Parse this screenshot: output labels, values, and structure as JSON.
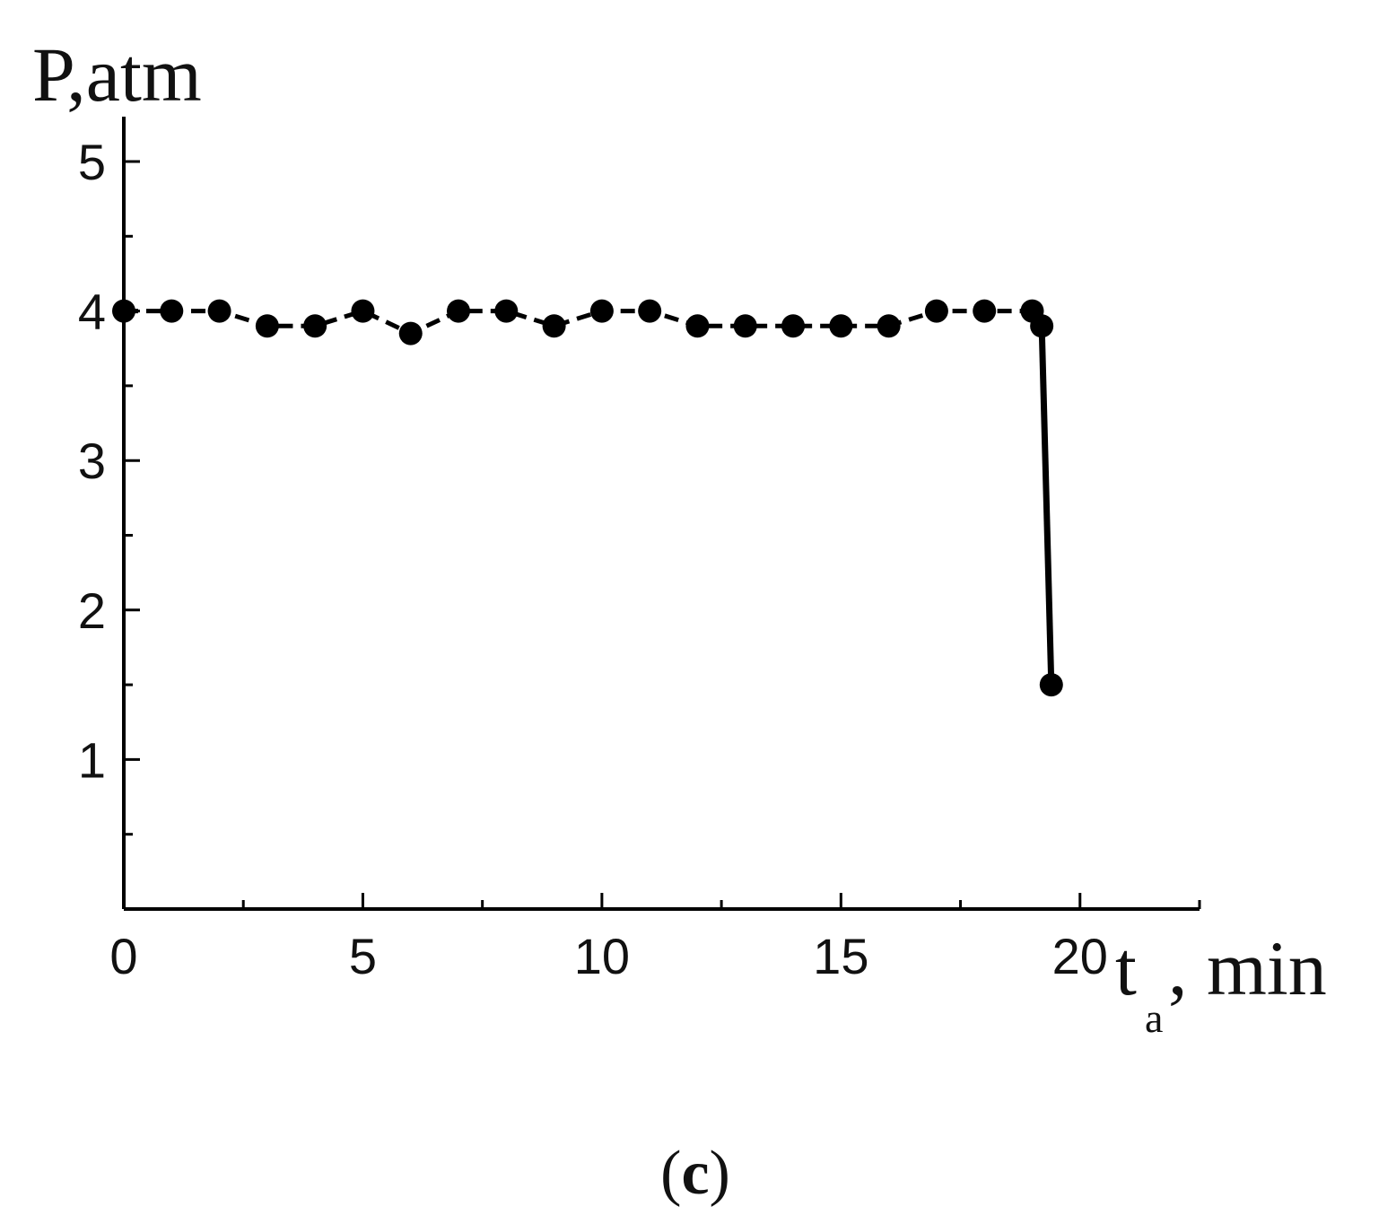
{
  "chart_data": {
    "type": "line",
    "ylabel": "P,atm",
    "xlabel": {
      "main": "t",
      "sub": "a",
      "rest": ", min"
    },
    "panel_label": {
      "open": "(",
      "letter": "c",
      "close": ")"
    },
    "xlim": [
      0,
      22.5
    ],
    "ylim": [
      0,
      5.3
    ],
    "x_ticks": [
      0,
      5,
      10,
      15,
      20
    ],
    "x_tick_labels": [
      "0",
      "5",
      "10",
      "15",
      "20"
    ],
    "x_minor_ticks": [
      2.5,
      7.5,
      12.5,
      17.5,
      22.5
    ],
    "y_ticks": [
      1,
      2,
      3,
      4,
      5
    ],
    "y_tick_labels": [
      "1",
      "2",
      "3",
      "4",
      "5"
    ],
    "y_minor_ticks": [
      0.5,
      1.5,
      2.5,
      3.5,
      4.5
    ],
    "grid": false,
    "legend": "none",
    "series": [
      {
        "points": [
          [
            0,
            4.0
          ],
          [
            1,
            4.0
          ],
          [
            2,
            4.0
          ],
          [
            3,
            3.9
          ],
          [
            4,
            3.9
          ],
          [
            5,
            4.0
          ],
          [
            6,
            3.85
          ],
          [
            7,
            4.0
          ],
          [
            8,
            4.0
          ],
          [
            9,
            3.9
          ],
          [
            10,
            4.0
          ],
          [
            11,
            4.0
          ],
          [
            12,
            3.9
          ],
          [
            13,
            3.9
          ],
          [
            14,
            3.9
          ],
          [
            15,
            3.9
          ],
          [
            16,
            3.9
          ],
          [
            17,
            4.0
          ],
          [
            18,
            4.0
          ],
          [
            19,
            4.0
          ],
          [
            19.2,
            3.9
          ],
          [
            19.4,
            1.5
          ]
        ],
        "color": "#000000",
        "style": "dashed-then-solid"
      }
    ]
  }
}
